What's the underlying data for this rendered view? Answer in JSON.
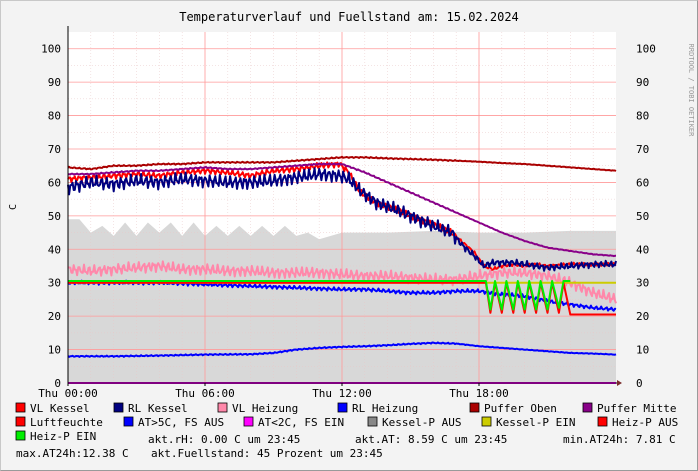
{
  "chart_data": {
    "type": "line",
    "title": "Temperaturverlauf und Fuellstand am: 15.02.2024",
    "ylabel": "C",
    "watermark": "RRDTOOL / TOBI OETIKER",
    "ylim": [
      0,
      105
    ],
    "yticks": [
      "0",
      "10",
      "20",
      "30",
      "40",
      "50",
      "60",
      "70",
      "80",
      "90",
      "100"
    ],
    "xlim": [
      0,
      24
    ],
    "xticks": [
      {
        "h": 0,
        "label": "Thu 00:00"
      },
      {
        "h": 6,
        "label": "Thu 06:00"
      },
      {
        "h": 12,
        "label": "Thu 12:00"
      },
      {
        "h": 18,
        "label": "Thu 18:00"
      }
    ],
    "series": [
      {
        "name": "VL Kessel",
        "color": "#ff0000",
        "data": [
          [
            0,
            61
          ],
          [
            1,
            61.5
          ],
          [
            2,
            62
          ],
          [
            3,
            62.5
          ],
          [
            4,
            62
          ],
          [
            5,
            63
          ],
          [
            6,
            63.5
          ],
          [
            7,
            63
          ],
          [
            8,
            62
          ],
          [
            9,
            63.5
          ],
          [
            10,
            64
          ],
          [
            11,
            65
          ],
          [
            11.9,
            65.5
          ],
          [
            12.3,
            63
          ],
          [
            12.8,
            57
          ],
          [
            13.5,
            54
          ],
          [
            14.3,
            52
          ],
          [
            15,
            50
          ],
          [
            16,
            47.5
          ],
          [
            16.8,
            45
          ],
          [
            17.3,
            42
          ],
          [
            17.8,
            39
          ],
          [
            18.2,
            35
          ],
          [
            18.6,
            34
          ],
          [
            19,
            35
          ],
          [
            19.5,
            35.5
          ],
          [
            20,
            35
          ],
          [
            20.5,
            35.5
          ],
          [
            21,
            35
          ],
          [
            22,
            35.5
          ],
          [
            23,
            35.5
          ],
          [
            24,
            35.5
          ]
        ],
        "wiggle": 1.0
      },
      {
        "name": "RL Kessel",
        "color": "#000080",
        "data": [
          [
            0,
            58.5
          ],
          [
            1,
            60
          ],
          [
            2,
            59.5
          ],
          [
            3,
            60.5
          ],
          [
            4,
            60
          ],
          [
            5,
            61
          ],
          [
            6,
            60.5
          ],
          [
            7,
            60
          ],
          [
            8,
            60
          ],
          [
            9,
            60.5
          ],
          [
            10,
            61.5
          ],
          [
            11,
            62.5
          ],
          [
            11.9,
            62
          ],
          [
            12.3,
            61
          ],
          [
            12.8,
            57.5
          ],
          [
            13.5,
            54
          ],
          [
            14.3,
            52
          ],
          [
            15,
            50
          ],
          [
            16,
            47
          ],
          [
            16.8,
            45
          ],
          [
            17.3,
            41
          ],
          [
            17.8,
            38
          ],
          [
            18.2,
            35
          ],
          [
            18.6,
            36
          ],
          [
            19,
            36
          ],
          [
            19.5,
            36
          ],
          [
            20,
            35.5
          ],
          [
            20.5,
            35
          ],
          [
            21,
            34.5
          ],
          [
            22,
            35
          ],
          [
            23,
            35.5
          ],
          [
            24,
            35.5
          ]
        ],
        "wiggle": 2.2
      },
      {
        "name": "VL Heizung",
        "color": "#ff88aa",
        "data": [
          [
            0,
            34
          ],
          [
            1,
            33.5
          ],
          [
            2,
            34
          ],
          [
            3,
            34.5
          ],
          [
            4,
            35
          ],
          [
            5,
            34
          ],
          [
            6,
            34
          ],
          [
            7,
            33.5
          ],
          [
            8,
            33.5
          ],
          [
            9,
            33
          ],
          [
            10,
            33
          ],
          [
            11,
            33
          ],
          [
            12,
            32.5
          ],
          [
            13,
            32
          ],
          [
            14,
            32
          ],
          [
            15,
            31.5
          ],
          [
            16,
            31
          ],
          [
            17,
            31
          ],
          [
            18,
            32
          ],
          [
            19,
            33
          ],
          [
            20,
            33
          ],
          [
            21,
            32
          ],
          [
            22,
            30
          ],
          [
            23,
            27
          ],
          [
            24,
            25
          ]
        ],
        "wiggle": 1.8
      },
      {
        "name": "RL Heizung",
        "color": "#0000ff",
        "data": [
          [
            0,
            30
          ],
          [
            2,
            30
          ],
          [
            4,
            30
          ],
          [
            6,
            29.5
          ],
          [
            8,
            29
          ],
          [
            10,
            28.5
          ],
          [
            12,
            28
          ],
          [
            13,
            28
          ],
          [
            14,
            27.5
          ],
          [
            15,
            27
          ],
          [
            16,
            27
          ],
          [
            17,
            27.5
          ],
          [
            18,
            27.5
          ],
          [
            19,
            26.5
          ],
          [
            20,
            26
          ],
          [
            21,
            24.5
          ],
          [
            22,
            23.5
          ],
          [
            23,
            22.5
          ],
          [
            24,
            22
          ]
        ],
        "wiggle": 0.6
      },
      {
        "name": "Puffer Oben",
        "color": "#aa0000",
        "data": [
          [
            0,
            64.5
          ],
          [
            1,
            64
          ],
          [
            2,
            65
          ],
          [
            3,
            65
          ],
          [
            4,
            65.5
          ],
          [
            5,
            65.5
          ],
          [
            6,
            66
          ],
          [
            7,
            66
          ],
          [
            8,
            66
          ],
          [
            9,
            66
          ],
          [
            10,
            66.5
          ],
          [
            11,
            67
          ],
          [
            12,
            67.5
          ],
          [
            13,
            67.5
          ],
          [
            14,
            67.2
          ],
          [
            15,
            67
          ],
          [
            16,
            66.8
          ],
          [
            17,
            66.5
          ],
          [
            18,
            66.2
          ],
          [
            19,
            65.8
          ],
          [
            20,
            65.5
          ],
          [
            21,
            65
          ],
          [
            22,
            64.5
          ],
          [
            23,
            64
          ],
          [
            24,
            63.5
          ]
        ],
        "wiggle": 0.2
      },
      {
        "name": "Puffer Mitte",
        "color": "#880088",
        "data": [
          [
            0,
            62.5
          ],
          [
            1,
            62.5
          ],
          [
            2,
            63
          ],
          [
            3,
            63.5
          ],
          [
            4,
            63.5
          ],
          [
            5,
            64
          ],
          [
            6,
            64.5
          ],
          [
            7,
            64
          ],
          [
            8,
            64
          ],
          [
            9,
            64.5
          ],
          [
            10,
            65
          ],
          [
            11,
            65.5
          ],
          [
            12,
            65.5
          ],
          [
            13,
            63
          ],
          [
            14,
            60
          ],
          [
            15,
            57
          ],
          [
            16,
            54
          ],
          [
            17,
            51
          ],
          [
            18,
            48
          ],
          [
            19,
            45
          ],
          [
            20,
            42.5
          ],
          [
            21,
            40.5
          ],
          [
            22,
            39.5
          ],
          [
            23,
            38.5
          ],
          [
            24,
            38
          ]
        ],
        "wiggle": 0.2
      },
      {
        "name": "Luftfeuchte",
        "color": "#00cccc",
        "data": [],
        "wiggle": 0
      },
      {
        "name": "AT>5C, FS AUS",
        "color": "#0000ff",
        "data": [
          [
            0,
            8
          ],
          [
            2,
            8
          ],
          [
            4,
            8.2
          ],
          [
            6,
            8.5
          ],
          [
            8,
            8.6
          ],
          [
            9,
            9
          ],
          [
            10,
            10
          ],
          [
            11,
            10.5
          ],
          [
            12,
            10.8
          ],
          [
            13,
            11
          ],
          [
            14,
            11.3
          ],
          [
            15,
            11.7
          ],
          [
            16,
            12
          ],
          [
            17,
            11.8
          ],
          [
            18,
            11
          ],
          [
            19,
            10.5
          ],
          [
            20,
            10
          ],
          [
            21,
            9.5
          ],
          [
            22,
            9
          ],
          [
            23,
            8.8
          ],
          [
            24,
            8.5
          ]
        ],
        "wiggle": 0.2
      },
      {
        "name": "AT<2C, FS EIN",
        "color": "#ff00ff",
        "data": [
          [
            0,
            0
          ],
          [
            24,
            0
          ]
        ],
        "wiggle": 0
      },
      {
        "name": "Kessel-P AUS",
        "color": "#888888",
        "data": [],
        "wiggle": 0
      },
      {
        "name": "Kessel-P EIN",
        "color": "#cccc00",
        "data": [
          [
            0,
            30
          ],
          [
            24,
            30
          ]
        ],
        "wiggle": 0
      },
      {
        "name": "Heiz-P AUS",
        "color": "#ff0000",
        "data": [
          [
            0,
            30
          ],
          [
            18.3,
            30
          ],
          [
            18.5,
            21
          ],
          [
            18.7,
            30
          ],
          [
            19,
            21
          ],
          [
            19.2,
            30
          ],
          [
            19.5,
            21
          ],
          [
            19.7,
            30
          ],
          [
            20,
            21
          ],
          [
            20.2,
            30
          ],
          [
            20.5,
            21
          ],
          [
            20.7,
            30
          ],
          [
            21,
            21
          ],
          [
            21.2,
            30
          ],
          [
            21.5,
            21
          ],
          [
            21.7,
            30
          ],
          [
            22,
            20.5
          ],
          [
            24,
            20.5
          ]
        ],
        "wiggle": 0
      },
      {
        "name": "Heiz-P EIN",
        "color": "#00ee00",
        "data": [
          [
            0,
            30.5
          ],
          [
            18.3,
            30.5
          ],
          [
            18.5,
            22
          ],
          [
            18.7,
            30.5
          ],
          [
            19,
            22
          ],
          [
            19.2,
            30.5
          ],
          [
            19.5,
            22
          ],
          [
            19.7,
            30.5
          ],
          [
            20,
            22
          ],
          [
            20.2,
            30.5
          ],
          [
            20.5,
            22
          ],
          [
            20.7,
            30.5
          ],
          [
            21,
            22
          ],
          [
            21.2,
            30.5
          ],
          [
            21.5,
            22.5
          ],
          [
            21.7,
            30.5
          ],
          [
            22,
            30.5
          ]
        ],
        "wiggle": 0
      }
    ],
    "fill_series": {
      "name": "Fuellstand",
      "color": "#d8d8d8",
      "data": [
        [
          0,
          49
        ],
        [
          0.5,
          49
        ],
        [
          1,
          45
        ],
        [
          1.5,
          47
        ],
        [
          2,
          44
        ],
        [
          2.5,
          48
        ],
        [
          3,
          44
        ],
        [
          3.5,
          48
        ],
        [
          4,
          45
        ],
        [
          4.5,
          48
        ],
        [
          5,
          44
        ],
        [
          5.5,
          48
        ],
        [
          6,
          44
        ],
        [
          6.5,
          47
        ],
        [
          7,
          44
        ],
        [
          7.5,
          47
        ],
        [
          8,
          44
        ],
        [
          8.5,
          47
        ],
        [
          9,
          44
        ],
        [
          9.5,
          47
        ],
        [
          10,
          44
        ],
        [
          10.5,
          45
        ],
        [
          11,
          43
        ],
        [
          12,
          45
        ],
        [
          14,
          45
        ],
        [
          16,
          45.5
        ],
        [
          18,
          45
        ],
        [
          20,
          45
        ],
        [
          22,
          45.5
        ],
        [
          24,
          45.5
        ]
      ]
    }
  },
  "legend": [
    {
      "label": "VL Kessel",
      "color": "#ff0000"
    },
    {
      "label": "RL Kessel",
      "color": "#000080"
    },
    {
      "label": "VL Heizung",
      "color": "#ff88aa"
    },
    {
      "label": "RL Heizung",
      "color": "#0000ff"
    },
    {
      "label": "Puffer Oben",
      "color": "#aa0000"
    },
    {
      "label": "Puffer Mitte",
      "color": "#880088"
    },
    {
      "label": "Luftfeuchte",
      "color": "#ff0000"
    },
    {
      "label": "AT>5C, FS AUS",
      "color": "#0000ff"
    },
    {
      "label": "AT<2C, FS EIN",
      "color": "#ff00ff"
    },
    {
      "label": "Kessel-P AUS",
      "color": "#888888"
    },
    {
      "label": "Kessel-P EIN",
      "color": "#cccc00"
    },
    {
      "label": "Heiz-P AUS",
      "color": "#ff0000"
    },
    {
      "label": "Heiz-P EIN",
      "color": "#00ee00"
    }
  ],
  "stats": {
    "line1": "akt.rH: 0.00 C um 23:45",
    "line2": "akt.AT: 8.59 C um 23:45",
    "line3": "min.AT24h: 7.81 C",
    "line4": "max.AT24h:12.38 C",
    "line5": "akt.Fuellstand:   45 Prozent um 23:45"
  }
}
